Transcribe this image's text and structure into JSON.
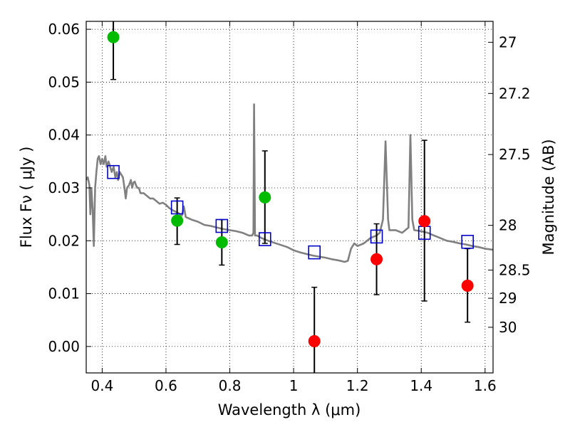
{
  "chart_data": {
    "type": "scatter",
    "xlabel": "Wavelength  λ (μm)",
    "ylabel": "Flux  Fν  ( μJy )",
    "y2label": "Magnitude (AB)",
    "xlim": [
      0.35,
      1.625
    ],
    "ylim": [
      -0.005,
      0.0615
    ],
    "grid": true,
    "x_ticks": [
      {
        "value": 0.4,
        "label": "0.4"
      },
      {
        "value": 0.6,
        "label": "0.6"
      },
      {
        "value": 0.8,
        "label": "0.8"
      },
      {
        "value": 1.0,
        "label": "1"
      },
      {
        "value": 1.2,
        "label": "1.2"
      },
      {
        "value": 1.4,
        "label": "1.4"
      },
      {
        "value": 1.6,
        "label": "1.6"
      }
    ],
    "y_ticks": [
      {
        "value": 0.0,
        "label": "0.00"
      },
      {
        "value": 0.01,
        "label": "0.01"
      },
      {
        "value": 0.02,
        "label": "0.02"
      },
      {
        "value": 0.03,
        "label": "0.03"
      },
      {
        "value": 0.04,
        "label": "0.04"
      },
      {
        "value": 0.05,
        "label": "0.05"
      },
      {
        "value": 0.06,
        "label": "0.06"
      }
    ],
    "y2_ticks": [
      {
        "value": 27.0,
        "label": "27"
      },
      {
        "value": 27.2,
        "label": "27.2"
      },
      {
        "value": 27.5,
        "label": "27.5"
      },
      {
        "value": 28.0,
        "label": "28"
      },
      {
        "value": 28.5,
        "label": "28.5"
      },
      {
        "value": 29.0,
        "label": "29"
      },
      {
        "value": 30.0,
        "label": "30"
      }
    ],
    "model_spectrum": {
      "color": "#808080",
      "points": [
        [
          0.35,
          0.0315
        ],
        [
          0.355,
          0.032
        ],
        [
          0.36,
          0.0305
        ],
        [
          0.363,
          0.025
        ],
        [
          0.366,
          0.03
        ],
        [
          0.37,
          0.026
        ],
        [
          0.374,
          0.019
        ],
        [
          0.378,
          0.03
        ],
        [
          0.382,
          0.033
        ],
        [
          0.386,
          0.0355
        ],
        [
          0.39,
          0.036
        ],
        [
          0.395,
          0.0345
        ],
        [
          0.4,
          0.0355
        ],
        [
          0.405,
          0.0345
        ],
        [
          0.41,
          0.036
        ],
        [
          0.414,
          0.034
        ],
        [
          0.42,
          0.035
        ],
        [
          0.425,
          0.034
        ],
        [
          0.43,
          0.033
        ],
        [
          0.436,
          0.034
        ],
        [
          0.441,
          0.032
        ],
        [
          0.446,
          0.033
        ],
        [
          0.45,
          0.0315
        ],
        [
          0.455,
          0.033
        ],
        [
          0.46,
          0.0325
        ],
        [
          0.465,
          0.032
        ],
        [
          0.47,
          0.03
        ],
        [
          0.474,
          0.028
        ],
        [
          0.478,
          0.03
        ],
        [
          0.484,
          0.0305
        ],
        [
          0.49,
          0.0315
        ],
        [
          0.494,
          0.03
        ],
        [
          0.498,
          0.031
        ],
        [
          0.502,
          0.0312
        ],
        [
          0.506,
          0.0305
        ],
        [
          0.51,
          0.03
        ],
        [
          0.515,
          0.03
        ],
        [
          0.52,
          0.029
        ],
        [
          0.53,
          0.029
        ],
        [
          0.54,
          0.0285
        ],
        [
          0.55,
          0.028
        ],
        [
          0.56,
          0.028
        ],
        [
          0.57,
          0.0275
        ],
        [
          0.58,
          0.027
        ],
        [
          0.59,
          0.0272
        ],
        [
          0.6,
          0.0268
        ],
        [
          0.61,
          0.0262
        ],
        [
          0.62,
          0.0258
        ],
        [
          0.63,
          0.0255
        ],
        [
          0.64,
          0.0252
        ],
        [
          0.65,
          0.0248
        ],
        [
          0.656,
          0.0265
        ],
        [
          0.662,
          0.0245
        ],
        [
          0.68,
          0.024
        ],
        [
          0.7,
          0.0236
        ],
        [
          0.72,
          0.023
        ],
        [
          0.74,
          0.0228
        ],
        [
          0.76,
          0.0225
        ],
        [
          0.78,
          0.0222
        ],
        [
          0.8,
          0.022
        ],
        [
          0.82,
          0.0218
        ],
        [
          0.84,
          0.0215
        ],
        [
          0.86,
          0.021
        ],
        [
          0.87,
          0.021
        ],
        [
          0.874,
          0.0215
        ],
        [
          0.876,
          0.0458
        ],
        [
          0.879,
          0.021
        ],
        [
          0.885,
          0.021
        ],
        [
          0.9,
          0.0205
        ],
        [
          0.92,
          0.02
        ],
        [
          0.94,
          0.0196
        ],
        [
          0.96,
          0.0192
        ],
        [
          0.98,
          0.0188
        ],
        [
          1.0,
          0.0182
        ],
        [
          1.02,
          0.0178
        ],
        [
          1.04,
          0.0175
        ],
        [
          1.06,
          0.0172
        ],
        [
          1.08,
          0.017
        ],
        [
          1.1,
          0.0168
        ],
        [
          1.12,
          0.0165
        ],
        [
          1.14,
          0.0163
        ],
        [
          1.16,
          0.016
        ],
        [
          1.17,
          0.0162
        ],
        [
          1.18,
          0.0185
        ],
        [
          1.19,
          0.0195
        ],
        [
          1.2,
          0.019
        ],
        [
          1.22,
          0.0195
        ],
        [
          1.24,
          0.0205
        ],
        [
          1.26,
          0.021
        ],
        [
          1.27,
          0.0215
        ],
        [
          1.28,
          0.024
        ],
        [
          1.288,
          0.0388
        ],
        [
          1.296,
          0.024
        ],
        [
          1.3,
          0.022
        ],
        [
          1.32,
          0.022
        ],
        [
          1.34,
          0.0215
        ],
        [
          1.36,
          0.0225
        ],
        [
          1.366,
          0.04
        ],
        [
          1.372,
          0.024
        ],
        [
          1.378,
          0.022
        ],
        [
          1.4,
          0.0218
        ],
        [
          1.42,
          0.0215
        ],
        [
          1.44,
          0.021
        ],
        [
          1.46,
          0.0205
        ],
        [
          1.48,
          0.02
        ],
        [
          1.5,
          0.0198
        ],
        [
          1.52,
          0.0195
        ],
        [
          1.54,
          0.0193
        ],
        [
          1.56,
          0.019
        ],
        [
          1.58,
          0.0188
        ],
        [
          1.6,
          0.0185
        ],
        [
          1.625,
          0.0183
        ]
      ]
    },
    "model_photometry": {
      "color": "#0000cc",
      "marker": "square",
      "x": [
        0.435,
        0.635,
        0.775,
        0.91,
        1.065,
        1.26,
        1.41,
        1.545
      ],
      "y": [
        0.033,
        0.0263,
        0.0228,
        0.0203,
        0.0178,
        0.0208,
        0.0215,
        0.0198
      ]
    },
    "observed_points": [
      {
        "x": 0.435,
        "y": 0.0585,
        "err_low": 0.0505,
        "err_high": 0.0635,
        "color": "#00bb00"
      },
      {
        "x": 0.635,
        "y": 0.0238,
        "err_low": 0.0193,
        "err_high": 0.0281,
        "color": "#00bb00"
      },
      {
        "x": 0.775,
        "y": 0.0197,
        "err_low": 0.0154,
        "err_high": 0.024,
        "color": "#00bb00"
      },
      {
        "x": 0.91,
        "y": 0.0282,
        "err_low": 0.0195,
        "err_high": 0.037,
        "color": "#00bb00"
      },
      {
        "x": 1.065,
        "y": 0.001,
        "err_low": -0.006,
        "err_high": 0.0112,
        "color": "#ff0000"
      },
      {
        "x": 1.26,
        "y": 0.0165,
        "err_low": 0.0098,
        "err_high": 0.0232,
        "color": "#ff0000"
      },
      {
        "x": 1.41,
        "y": 0.0237,
        "err_low": 0.0086,
        "err_high": 0.039,
        "color": "#ff0000"
      },
      {
        "x": 1.545,
        "y": 0.0115,
        "err_low": 0.0046,
        "err_high": 0.0185,
        "color": "#ff0000"
      }
    ]
  }
}
